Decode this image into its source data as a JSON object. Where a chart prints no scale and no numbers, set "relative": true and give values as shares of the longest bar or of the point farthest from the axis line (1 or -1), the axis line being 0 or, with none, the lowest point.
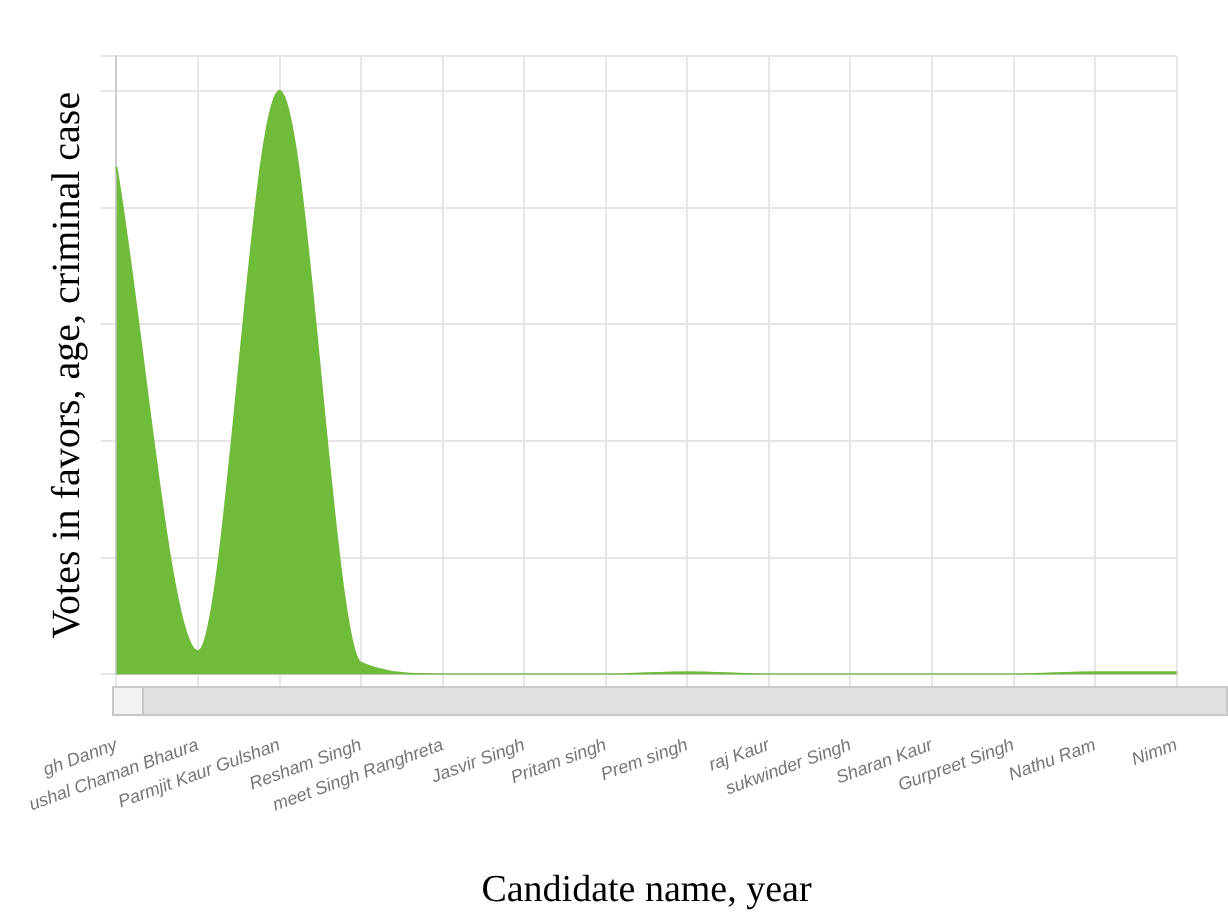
{
  "chart_data": {
    "type": "area",
    "relative": true,
    "xlabel": "Candidate name, year",
    "ylabel": "Votes in favors, age, criminal case",
    "categories": [
      "gh Danny",
      "ushal Chaman Bhaura",
      "Parmjit Kaur Gulshan",
      "Resham Singh",
      "meet Singh Ranghreta",
      "Jasvir Singh",
      "Pritam singh",
      "Prem singh",
      "raj Kaur",
      "sukwinder Singh",
      "Sharan Kaur",
      "Gurpreet Singh",
      "Nathu Ram",
      "Nimm"
    ],
    "series": [
      {
        "color": "#6fbb3a",
        "values": [
          0.87,
          0.04,
          1,
          0.02,
          0,
          0,
          0,
          0.004,
          0,
          0,
          0,
          0,
          0.004,
          0.004
        ]
      }
    ],
    "grid": true
  }
}
